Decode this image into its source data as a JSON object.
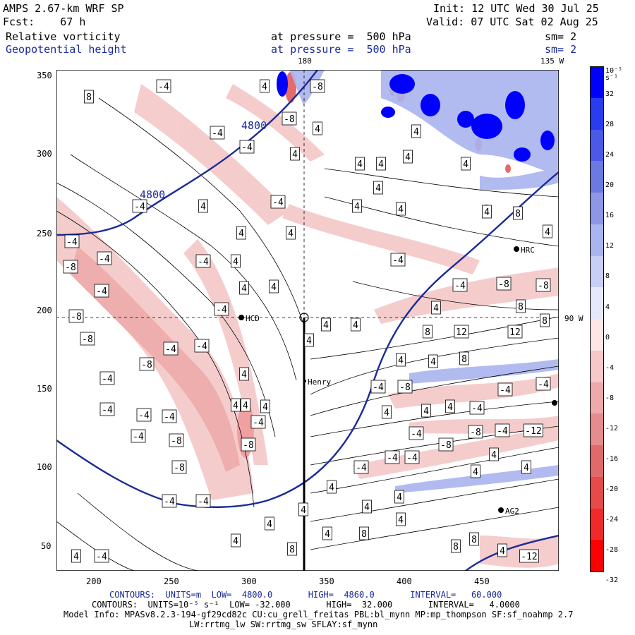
{
  "header": {
    "model": "AMPS 2.67-km WRF SP",
    "fcst": "Fcst:    67 h",
    "field1": "Relative vorticity",
    "field2": "Geopotential height",
    "pressure1": "at pressure =  500 hPa",
    "pressure2": "at pressure =  500 hPa",
    "init": "Init: 12 UTC Wed 30 Jul 25",
    "valid": "Valid: 07 UTC Sat 02 Aug 25",
    "sm1": "sm= 2",
    "sm2": "sm= 2"
  },
  "map_labels": {
    "lon_top_180": "180",
    "lon_top_135w": "135 W",
    "lon_right_90w": "90 W",
    "station_hcd": "HCD",
    "station_hrc": "HRC",
    "station_henry": "Henry",
    "station_ag2": "AG2",
    "height_4800_a": "4800",
    "height_4800_b": "4800"
  },
  "x_ticks": [
    "200",
    "250",
    "300",
    "350",
    "400",
    "450"
  ],
  "y_ticks": [
    "350",
    "300",
    "250",
    "200",
    "150",
    "100",
    "50"
  ],
  "colorbar": {
    "unit": "10⁻⁵ s⁻¹",
    "labels": [
      "32",
      "28",
      "24",
      "20",
      "16",
      "12",
      "8",
      "4",
      "0",
      "-4",
      "-8",
      "-12",
      "-16",
      "-20",
      "-24",
      "-28",
      "-32"
    ],
    "colors": [
      "#0000ff",
      "#2a3cf0",
      "#4a5ae6",
      "#6a7ae0",
      "#8c98e6",
      "#aab4ee",
      "#c8cef6",
      "#e6e8fc",
      "#fce6e6",
      "#f6c8c8",
      "#eeaaaa",
      "#e68c8c",
      "#e06a6a",
      "#e64a4a",
      "#f02a2a",
      "#ff0000"
    ]
  },
  "footer": {
    "contours1": "CONTOURS:  UNITS=m  LOW=  4800.0       HIGH=  4860.0       INTERVAL=   60.000",
    "contours2": "CONTOURS:  UNITS=10⁻⁵ s⁻¹  LOW= -32.000       HIGH=  32.000       INTERVAL=   4.0000",
    "model_info": "Model Info: MPASv8.2.3-194-gf29cd82c CU:cu_grell_freitas PBL:bl_mynn MP:mp_thompson SF:sf_noahmp 2.7",
    "model_info2": "LW:rrtmg_lw SW:rrtmg_sw SFLAY:sf_mynn"
  },
  "contour_labels": [
    [
      "8",
      126,
      137
    ],
    [
      "-4",
      232,
      122
    ],
    [
      "4",
      375,
      122
    ],
    [
      "-8",
      450,
      122
    ],
    [
      "-8",
      410,
      168
    ],
    [
      "4",
      450,
      182
    ],
    [
      "-4",
      308,
      188
    ],
    [
      "-4",
      350,
      208
    ],
    [
      "4",
      418,
      218
    ],
    [
      "4",
      510,
      232
    ],
    [
      "4",
      540,
      232
    ],
    [
      "4",
      578,
      222
    ],
    [
      "4",
      660,
      232
    ],
    [
      "4",
      590,
      186
    ],
    [
      "4",
      536,
      266
    ],
    [
      "4",
      506,
      292
    ],
    [
      "4",
      568,
      296
    ],
    [
      "4",
      690,
      300
    ],
    [
      "-4",
      198,
      292
    ],
    [
      "4",
      288,
      292
    ],
    [
      "-4",
      394,
      286
    ],
    [
      "8",
      734,
      302
    ],
    [
      "4",
      776,
      328
    ],
    [
      "4",
      342,
      330
    ],
    [
      "4",
      412,
      330
    ],
    [
      "-4",
      102,
      342
    ],
    [
      "-8",
      100,
      378
    ],
    [
      "-4",
      148,
      366
    ],
    [
      "-4",
      288,
      370
    ],
    [
      "4",
      334,
      370
    ],
    [
      "4",
      346,
      408
    ],
    [
      "4",
      388,
      406
    ],
    [
      "-4",
      564,
      368
    ],
    [
      "-4",
      144,
      412
    ],
    [
      "-4",
      652,
      404
    ],
    [
      "-8",
      714,
      402
    ],
    [
      "-8",
      770,
      404
    ],
    [
      "8",
      738,
      434
    ],
    [
      "-8",
      108,
      448
    ],
    [
      "-4",
      314,
      438
    ],
    [
      "4",
      618,
      436
    ],
    [
      "4",
      462,
      460
    ],
    [
      "4",
      504,
      460
    ],
    [
      "8",
      606,
      470
    ],
    [
      "12",
      654,
      470
    ],
    [
      "12",
      730,
      470
    ],
    [
      "8",
      772,
      454
    ],
    [
      "-8",
      124,
      480
    ],
    [
      "-4",
      242,
      494
    ],
    [
      "-4",
      286,
      490
    ],
    [
      "4",
      438,
      482
    ],
    [
      "4",
      568,
      510
    ],
    [
      "4",
      614,
      512
    ],
    [
      "8",
      658,
      508
    ],
    [
      "-8",
      208,
      516
    ],
    [
      "-4",
      152,
      536
    ],
    [
      "4",
      346,
      530
    ],
    [
      "-4",
      536,
      548
    ],
    [
      "-8",
      574,
      548
    ],
    [
      "-4",
      716,
      552
    ],
    [
      "-4",
      770,
      544
    ],
    [
      "-4",
      152,
      580
    ],
    [
      "-4",
      204,
      588
    ],
    [
      "-4",
      240,
      590
    ],
    [
      "4",
      334,
      574
    ],
    [
      "4",
      348,
      574
    ],
    [
      "4",
      376,
      576
    ],
    [
      "4",
      548,
      584
    ],
    [
      "4",
      604,
      582
    ],
    [
      "4",
      638,
      576
    ],
    [
      "-4",
      676,
      578
    ],
    [
      "-4",
      366,
      598
    ],
    [
      "-4",
      590,
      614
    ],
    [
      "-8",
      674,
      612
    ],
    [
      "-4",
      712,
      610
    ],
    [
      "-12",
      756,
      610
    ],
    [
      "-4",
      196,
      618
    ],
    [
      "-8",
      250,
      624
    ],
    [
      "-8",
      352,
      630
    ],
    [
      "-8",
      632,
      630
    ],
    [
      "-4",
      512,
      662
    ],
    [
      "-4",
      556,
      648
    ],
    [
      "-4",
      584,
      648
    ],
    [
      "4",
      700,
      644
    ],
    [
      "4",
      746,
      662
    ],
    [
      "-8",
      254,
      662
    ],
    [
      "4",
      674,
      668
    ],
    [
      "4",
      470,
      690
    ],
    [
      "4",
      520,
      718
    ],
    [
      "4",
      566,
      704
    ],
    [
      "-4",
      240,
      710
    ],
    [
      "-4",
      288,
      710
    ],
    [
      "4",
      430,
      722
    ],
    [
      "4",
      382,
      742
    ],
    [
      "4",
      568,
      736
    ],
    [
      "4",
      464,
      756
    ],
    [
      "8",
      516,
      756
    ],
    [
      "8",
      672,
      764
    ],
    [
      "4",
      334,
      766
    ],
    [
      "8",
      414,
      778
    ],
    [
      "8",
      646,
      774
    ],
    [
      "4",
      712,
      780
    ],
    [
      "4",
      108,
      788
    ],
    [
      "-4",
      144,
      788
    ],
    [
      "-12",
      750,
      788
    ]
  ]
}
